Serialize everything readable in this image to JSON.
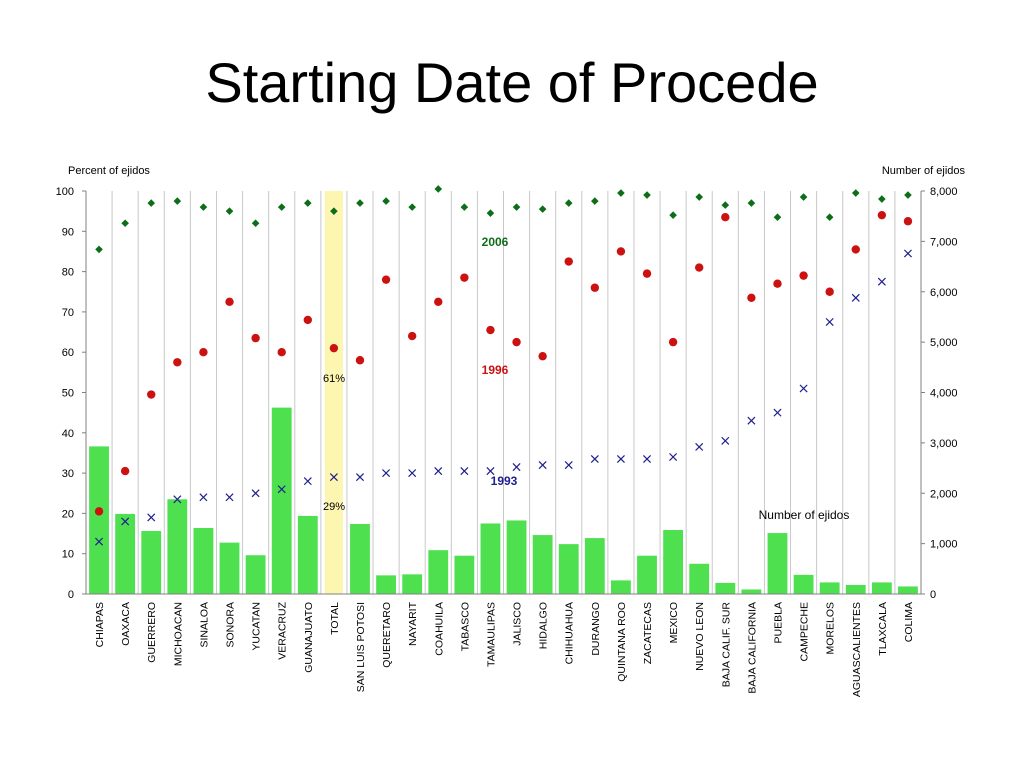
{
  "slide": {
    "title": "Starting Date of Procede"
  },
  "chart_data": {
    "type": "bar",
    "left_axis_title": "Percent of ejidos",
    "right_axis_title": "Number of ejidos",
    "ylim_left": [
      0,
      100
    ],
    "ylim_right": [
      0,
      8000
    ],
    "left_ticks": [
      "0",
      "10",
      "20",
      "30",
      "40",
      "50",
      "60",
      "70",
      "80",
      "90",
      "100"
    ],
    "right_ticks": [
      "0",
      "1,000",
      "2,000",
      "3,000",
      "4,000",
      "5,000",
      "6,000",
      "7,000",
      "8,000"
    ],
    "categories": [
      "CHIAPAS",
      "OAXACA",
      "GUERRERO",
      "MICHOACAN",
      "SINALOA",
      "SONORA",
      "YUCATAN",
      "VERACRUZ",
      "GUANAJUATO",
      "TOTAL",
      "SAN LUIS POTOSI",
      "QUERETARO",
      "NAYARIT",
      "COAHUILA",
      "TABASCO",
      "TAMAULIPAS",
      "JALISCO",
      "HIDALGO",
      "CHIHUAHUA",
      "DURANGO",
      "QUINTANA ROO",
      "ZACATECAS",
      "MEXICO",
      "NUEVO LEON",
      "BAJA CALIF. SUR",
      "BAJA CALIFORNIA",
      "PUEBLA",
      "CAMPECHE",
      "MORELOS",
      "AGUASCALIENTES",
      "TLAXCALA",
      "COLIMA"
    ],
    "highlight_category": "TOTAL",
    "series": [
      {
        "name": "Number of ejidos",
        "kind": "bar",
        "axis": "right",
        "color": "#4fe04f",
        "values": [
          2930,
          1590,
          1250,
          1880,
          1310,
          1020,
          770,
          3700,
          1550,
          null,
          1390,
          370,
          390,
          870,
          760,
          1400,
          1460,
          1170,
          990,
          1110,
          270,
          760,
          1270,
          600,
          220,
          90,
          1210,
          380,
          230,
          180,
          230,
          150
        ]
      },
      {
        "name": "1993",
        "kind": "marker-x",
        "axis": "left",
        "color": "#1f1f8f",
        "values": [
          13,
          18,
          19,
          23.5,
          24,
          24,
          25,
          26,
          28,
          29,
          29,
          30,
          30,
          30.5,
          30.5,
          30.5,
          31.5,
          32,
          32,
          33.5,
          33.5,
          33.5,
          34,
          36.5,
          38,
          43,
          45,
          51,
          67.5,
          73.5,
          77.5,
          84.5
        ]
      },
      {
        "name": "1996",
        "kind": "marker-dot",
        "axis": "left",
        "color": "#cc1111",
        "values": [
          20.5,
          30.5,
          49.5,
          57.5,
          60,
          72.5,
          63.5,
          60,
          68,
          61,
          58,
          78,
          64,
          72.5,
          78.5,
          65.5,
          62.5,
          59,
          82.5,
          76,
          85,
          79.5,
          62.5,
          81,
          93.5,
          73.5,
          77,
          79,
          75,
          85.5,
          94,
          92.5
        ]
      },
      {
        "name": "2006",
        "kind": "marker-diamond",
        "axis": "left",
        "color": "#0d6e1a",
        "values": [
          85.5,
          92,
          97,
          97.5,
          96,
          95,
          92,
          96,
          97,
          95,
          97,
          97.5,
          96,
          100.5,
          96,
          94.5,
          96,
          95.5,
          97,
          97.5,
          99.5,
          99,
          94,
          98.5,
          96.5,
          97,
          93.5,
          98.5,
          93.5,
          99.5,
          98,
          99
        ]
      }
    ],
    "annotations": [
      {
        "text": "2006",
        "color": "#0d6e1a"
      },
      {
        "text": "1996",
        "color": "#cc1111"
      },
      {
        "text": "1993",
        "color": "#1f1f8f"
      },
      {
        "text": "61%",
        "color": "#000000"
      },
      {
        "text": "29%",
        "color": "#000000"
      },
      {
        "text": "Number of ejidos",
        "color": "#000000"
      }
    ],
    "legend": "none",
    "grid": "vertical-category-lines"
  }
}
